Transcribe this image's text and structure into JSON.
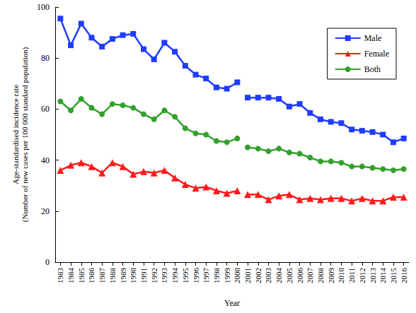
{
  "chart_data": {
    "type": "line",
    "x_label": "Year",
    "y_label": "Age-standardised incidence rate\n(Number of new cases per 100 000 standard population)",
    "categories": [
      "1983",
      "1984",
      "1985",
      "1986",
      "1987",
      "1988",
      "1989",
      "1990",
      "1991",
      "1992",
      "1993",
      "1994",
      "1995",
      "1996",
      "1997",
      "1998",
      "1999",
      "2000",
      "2001",
      "2002",
      "2003",
      "2004",
      "2005",
      "2006",
      "2007",
      "2008",
      "2009",
      "2010",
      "2011",
      "2012",
      "2013",
      "2014",
      "2015",
      "2016"
    ],
    "series": [
      {
        "name": "Male",
        "color": "#1f3cff",
        "marker": "square",
        "values": [
          95.5,
          85,
          93.5,
          88,
          84.5,
          87.5,
          89,
          89.5,
          83.5,
          79.5,
          86,
          82.5,
          77,
          73.5,
          72,
          68.5,
          68,
          70.5,
          null,
          null,
          null,
          null,
          null,
          null,
          null,
          null,
          null,
          null,
          null,
          null,
          null,
          null,
          null,
          null
        ]
      },
      {
        "name": "Male",
        "color": "#1f3cff",
        "marker": "square",
        "values": [
          null,
          null,
          null,
          null,
          null,
          null,
          null,
          null,
          null,
          null,
          null,
          null,
          null,
          null,
          null,
          null,
          null,
          null,
          64.5,
          64.5,
          64.5,
          64,
          61,
          62,
          58.5,
          56,
          55,
          54.5,
          52,
          51.5,
          51,
          50,
          47,
          48.5
        ]
      },
      {
        "name": "Female",
        "color": "#ff1a1a",
        "marker": "triangle",
        "values": [
          36,
          38,
          39,
          37.5,
          35,
          39,
          37.5,
          34.5,
          35.5,
          35,
          36,
          33,
          30.5,
          29,
          29.5,
          28,
          27,
          28,
          null,
          null,
          null,
          null,
          null,
          null,
          null,
          null,
          null,
          null,
          null,
          null,
          null,
          null,
          null,
          null
        ]
      },
      {
        "name": "Female",
        "color": "#ff1a1a",
        "marker": "triangle",
        "values": [
          null,
          null,
          null,
          null,
          null,
          null,
          null,
          null,
          null,
          null,
          null,
          null,
          null,
          null,
          null,
          null,
          null,
          null,
          26.5,
          26.5,
          24.5,
          26,
          26.5,
          24.5,
          25,
          24.5,
          25,
          25,
          24,
          25,
          24,
          24,
          25.5,
          25.5
        ]
      },
      {
        "name": "Both",
        "color": "#33a02c",
        "marker": "circle",
        "values": [
          63,
          59.5,
          64,
          60.5,
          58,
          62,
          61.5,
          60.5,
          58,
          56,
          59.5,
          57,
          52.5,
          50.5,
          50,
          47.5,
          47,
          48.5,
          null,
          null,
          null,
          null,
          null,
          null,
          null,
          null,
          null,
          null,
          null,
          null,
          null,
          null,
          null,
          null
        ]
      },
      {
        "name": "Both",
        "color": "#33a02c",
        "marker": "circle",
        "values": [
          null,
          null,
          null,
          null,
          null,
          null,
          null,
          null,
          null,
          null,
          null,
          null,
          null,
          null,
          null,
          null,
          null,
          null,
          45,
          44.5,
          43.5,
          44.5,
          43,
          42.5,
          41,
          39.5,
          39.5,
          39,
          37.5,
          37.5,
          37,
          36.5,
          36,
          36.5
        ]
      }
    ],
    "ylim": [
      0,
      100
    ],
    "yticks": [
      0,
      20,
      40,
      60,
      80,
      100
    ],
    "grid": false,
    "legend": "upper right"
  }
}
